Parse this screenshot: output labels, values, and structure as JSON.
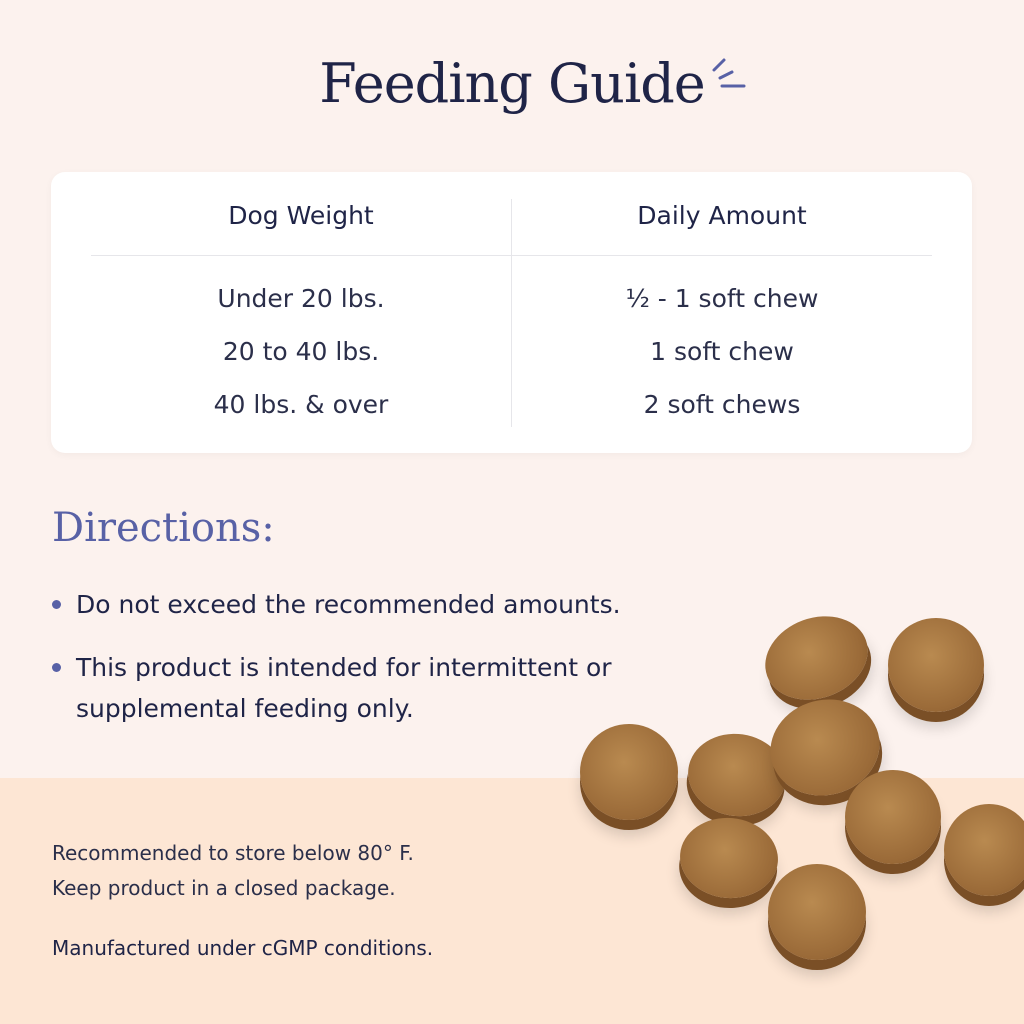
{
  "title": "Feeding Guide",
  "table": {
    "headers": [
      "Dog Weight",
      "Daily Amount"
    ],
    "rows": [
      {
        "weight": "Under 20 lbs.",
        "amount": "½ - 1 soft chew"
      },
      {
        "weight": "20 to 40 lbs.",
        "amount": "1 soft chew"
      },
      {
        "weight": "40 lbs. & over",
        "amount": "2 soft chews"
      }
    ]
  },
  "directions": {
    "heading": "Directions:",
    "items": [
      "Do not exceed the recommended amounts.",
      "This product is intended for intermittent or supplemental feeding only."
    ]
  },
  "storage": [
    "Recommended to store below 80° F.",
    "Keep product in a closed package."
  ],
  "manufacturing": "Manufactured under cGMP conditions.",
  "colors": {
    "background": "#fcf2ee",
    "band": "#fde6d4",
    "navy": "#1f2447",
    "accent": "#5861a6",
    "chew": "#9a6a38"
  }
}
